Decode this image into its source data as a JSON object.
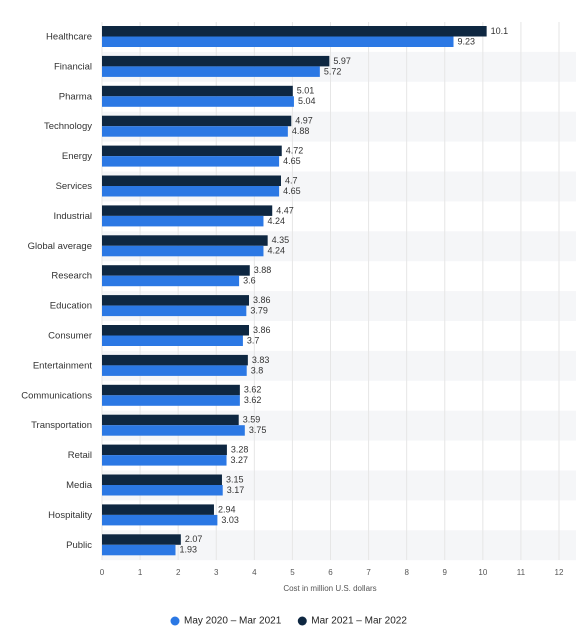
{
  "chart_data": {
    "type": "hbar",
    "categories": [
      "Healthcare",
      "Financial",
      "Pharma",
      "Technology",
      "Energy",
      "Services",
      "Industrial",
      "Global average",
      "Research",
      "Education",
      "Consumer",
      "Entertainment",
      "Communications",
      "Transportation",
      "Retail",
      "Media",
      "Hospitality",
      "Public"
    ],
    "series": [
      {
        "name": "May 2020 – Mar 2021",
        "color": "#2b78e4",
        "values": [
          9.23,
          5.72,
          5.04,
          4.88,
          4.65,
          4.65,
          4.24,
          4.24,
          3.6,
          3.79,
          3.7,
          3.8,
          3.62,
          3.75,
          3.27,
          3.17,
          3.03,
          1.93
        ]
      },
      {
        "name": "Mar 2021 – Mar 2022",
        "color": "#0e2741",
        "values": [
          10.1,
          5.97,
          5.01,
          4.97,
          4.72,
          4.7,
          4.47,
          4.35,
          3.88,
          3.86,
          3.86,
          3.83,
          3.62,
          3.59,
          3.28,
          3.15,
          2.94,
          2.07
        ]
      }
    ],
    "xlabel": "Cost in million U.S. dollars",
    "xlim": [
      0,
      12
    ],
    "xticks": [
      0,
      1,
      2,
      3,
      4,
      5,
      6,
      7,
      8,
      9,
      10,
      11,
      12
    ],
    "grid": true
  }
}
